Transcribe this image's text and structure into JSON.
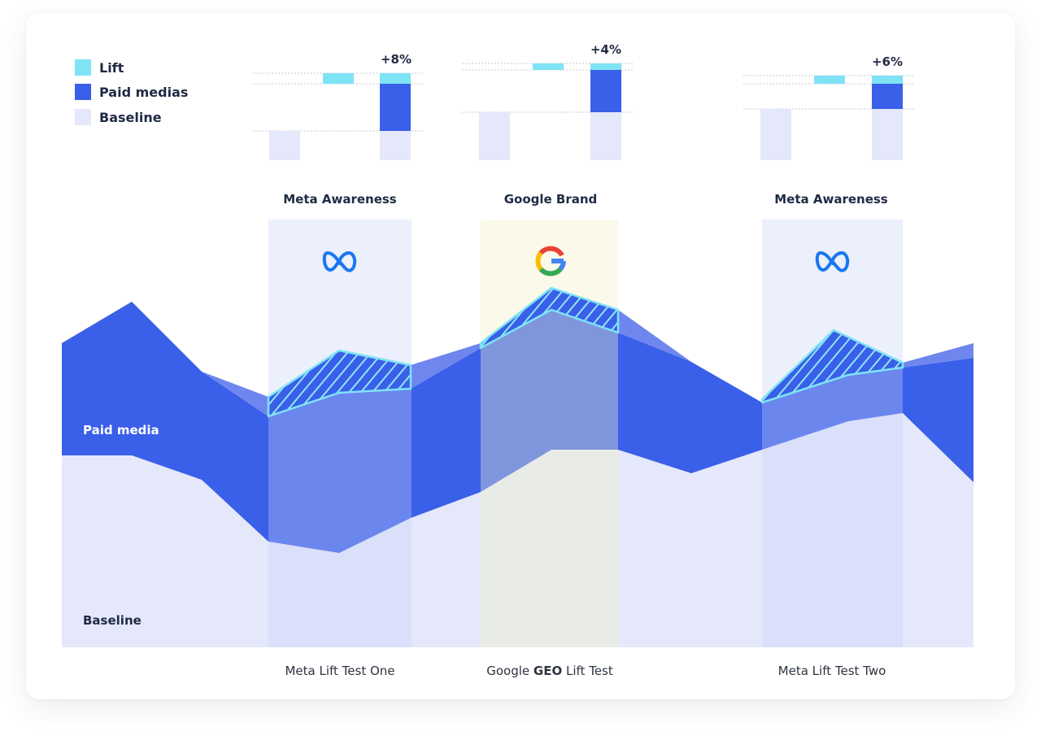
{
  "legend": {
    "lift": "Lift",
    "paid": "Paid medias",
    "baseline": "Baseline"
  },
  "campaigns": [
    {
      "title": "Meta Awareness",
      "lift_label": "+8%",
      "test_label_pre": "Meta Lift Test One",
      "test_label_bold": "",
      "test_label_post": "",
      "icon": "meta-logo-icon"
    },
    {
      "title": "Google Brand",
      "lift_label": "+4%",
      "test_label_pre": "Google ",
      "test_label_bold": "GEO",
      "test_label_post": " Lift Test",
      "icon": "google-logo-icon"
    },
    {
      "title": "Meta Awareness",
      "lift_label": "+6%",
      "test_label_pre": "Meta Lift Test Two",
      "test_label_bold": "",
      "test_label_post": "",
      "icon": "meta-logo-icon"
    }
  ],
  "area_labels": {
    "paid_media": "Paid media",
    "baseline": "Baseline"
  },
  "colors": {
    "lift": "#7EE3F5",
    "paid": "#3A5FE8",
    "baseline": "#E4E8FA",
    "text": "#1F2A44",
    "label": "#2E3440"
  }
}
